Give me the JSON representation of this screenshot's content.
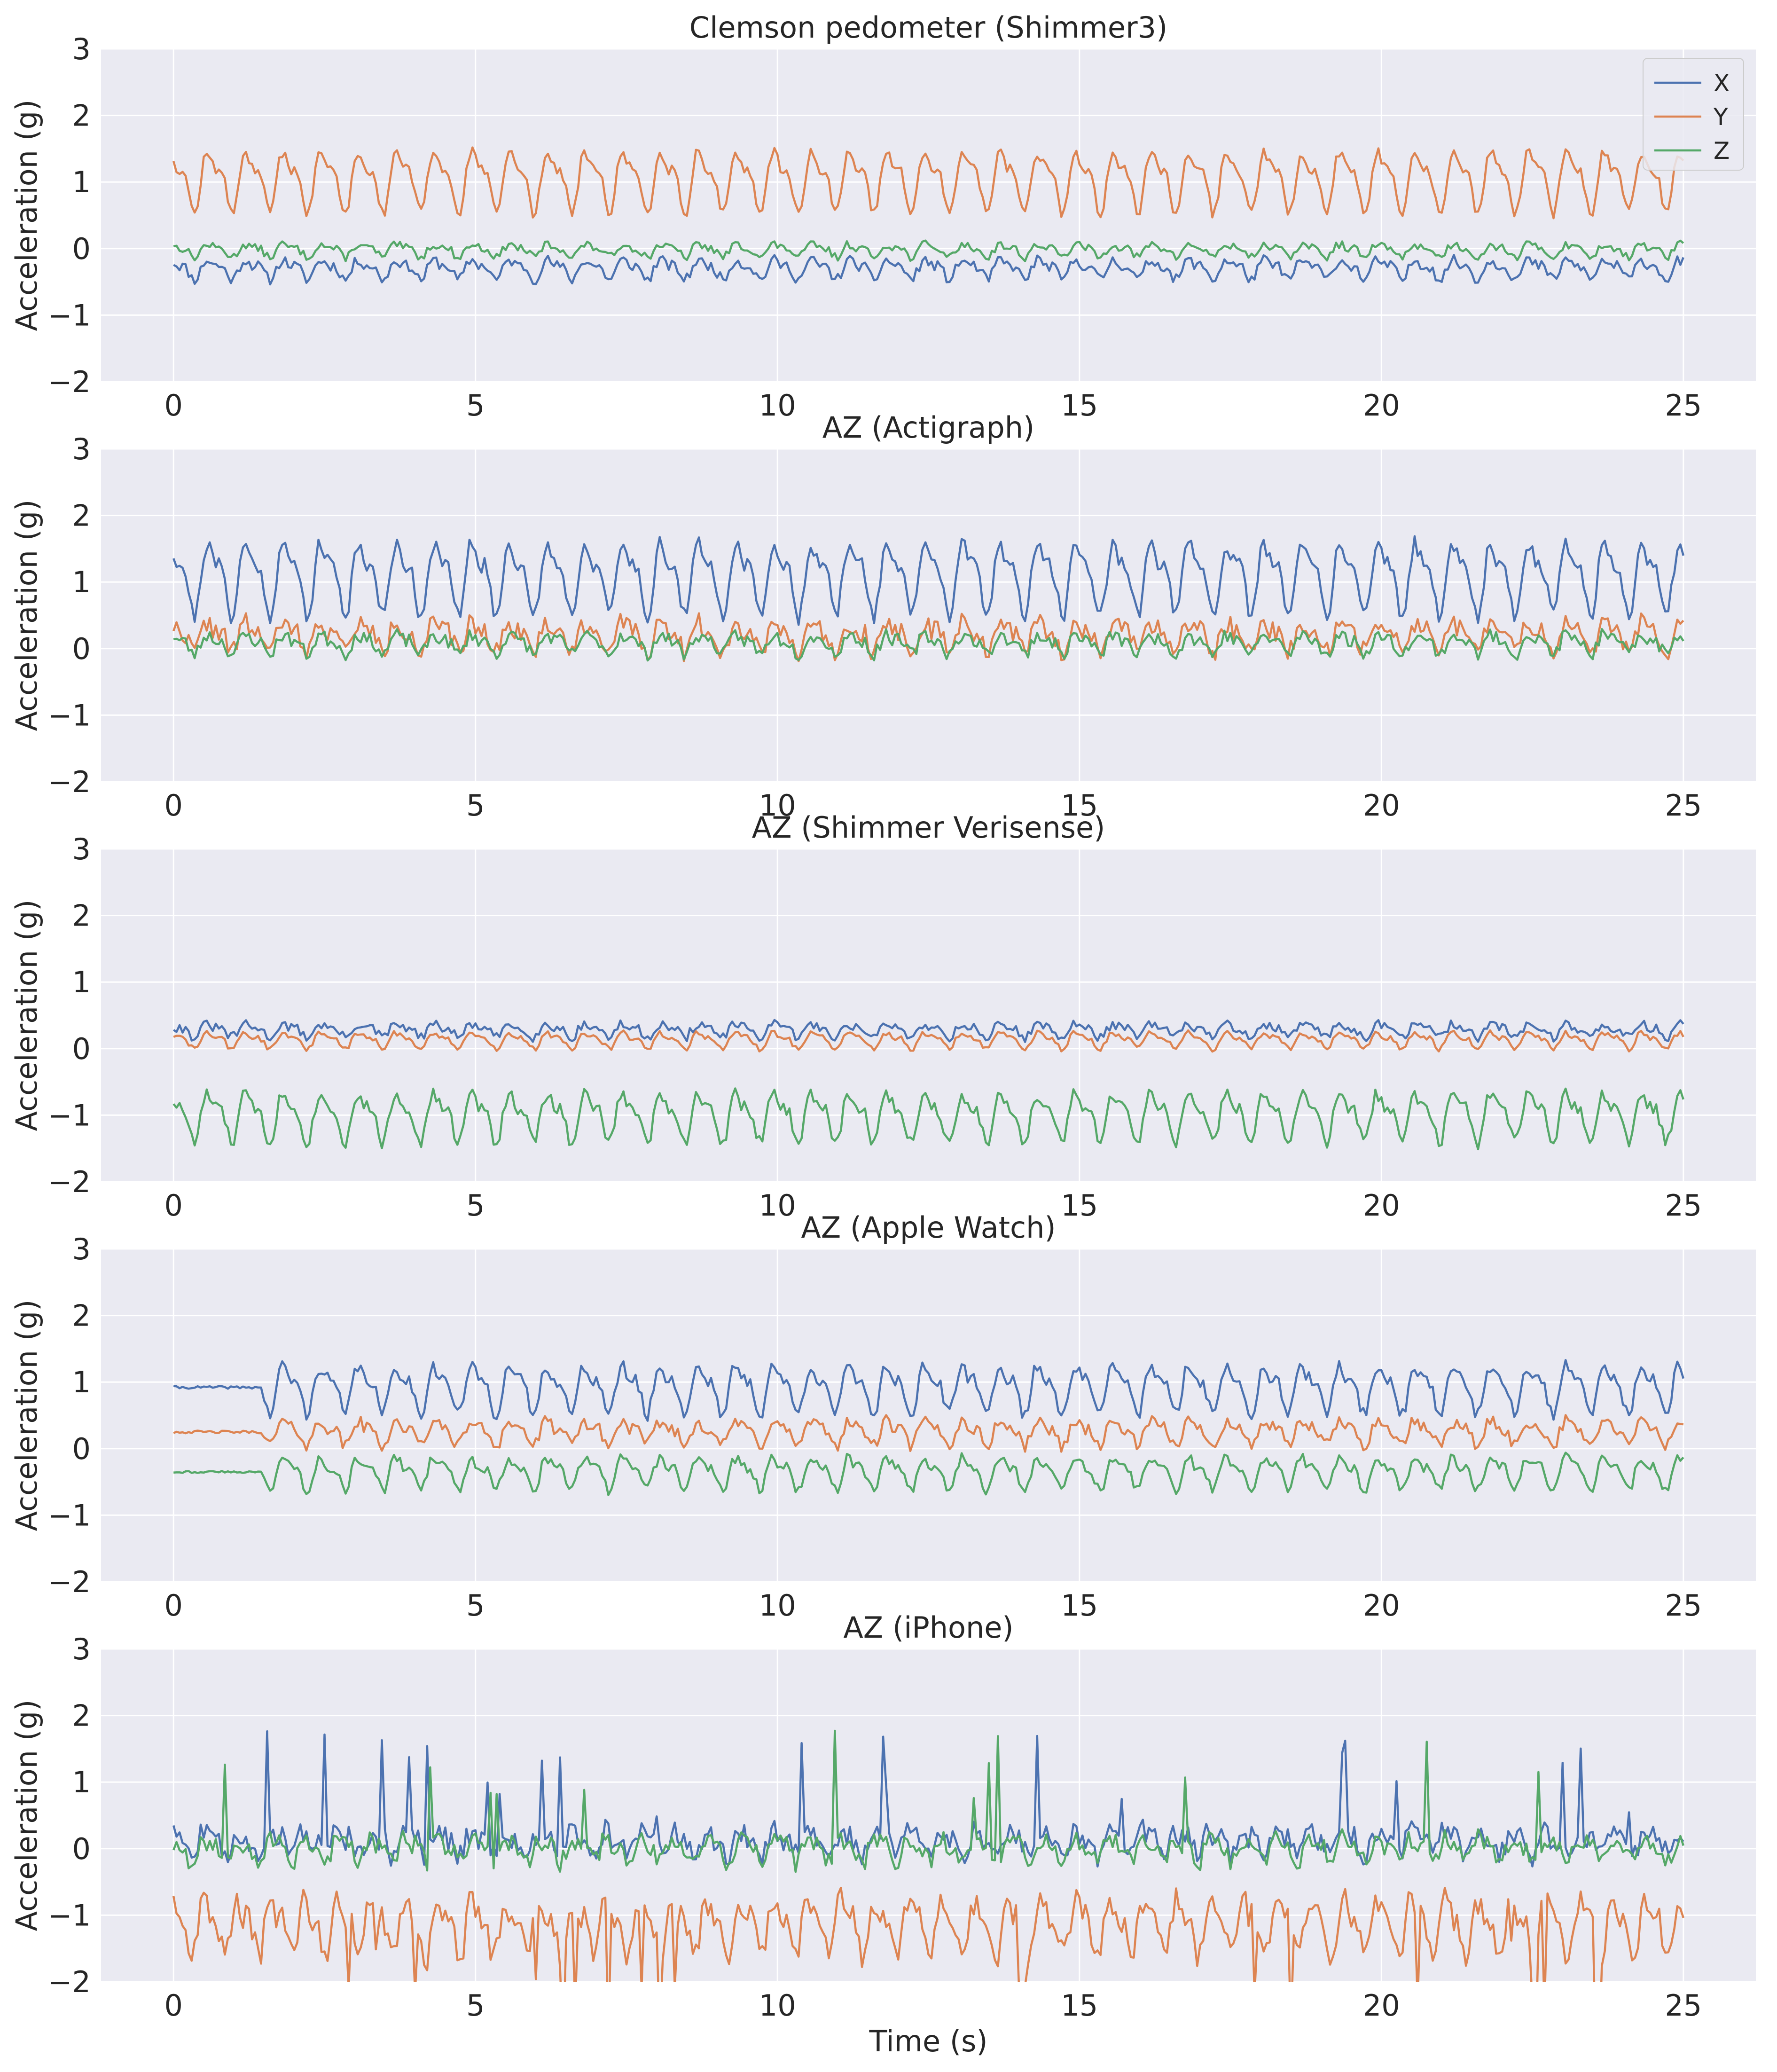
{
  "figure": {
    "xlabel": "Time (s)",
    "ylabel": "Acceleration (g)"
  },
  "legend": {
    "position": "top-right",
    "entries": [
      {
        "label": "X",
        "color": "#4c72b0"
      },
      {
        "label": "Y",
        "color": "#dd8452"
      },
      {
        "label": "Z",
        "color": "#55a868"
      }
    ]
  },
  "chart_data": [
    {
      "type": "line",
      "title": "Clemson pedometer (Shimmer3)",
      "xlabel": "",
      "ylabel": "Acceleration (g)",
      "xlim": [
        -1.2,
        26.2
      ],
      "ylim": [
        -2,
        3
      ],
      "xticks": [
        0,
        5,
        10,
        15,
        20,
        25
      ],
      "yticks": [
        -2,
        -1,
        0,
        1,
        2,
        3
      ],
      "ytick_labels": [
        "−2",
        "−1",
        "0",
        "1",
        "2",
        "3"
      ],
      "grid": true,
      "duration": 25,
      "series": [
        {
          "name": "X",
          "color": "#4c72b0",
          "mean": -0.3,
          "amp": 0.12,
          "freq": 1.6,
          "noise": 0.08,
          "seed": 11
        },
        {
          "name": "Y",
          "color": "#dd8452",
          "mean": 1.05,
          "amp": 0.38,
          "freq": 1.6,
          "noise": 0.08,
          "seed": 12
        },
        {
          "name": "Z",
          "color": "#55a868",
          "mean": -0.02,
          "amp": 0.08,
          "freq": 1.6,
          "noise": 0.06,
          "seed": 13
        }
      ]
    },
    {
      "type": "line",
      "title": "AZ (Actigraph)",
      "xlabel": "",
      "ylabel": "Acceleration (g)",
      "xlim": [
        -1.2,
        26.2
      ],
      "ylim": [
        -2,
        3
      ],
      "xticks": [
        0,
        5,
        10,
        15,
        20,
        25
      ],
      "yticks": [
        -2,
        -1,
        0,
        1,
        2,
        3
      ],
      "ytick_labels": [
        "−2",
        "−1",
        "0",
        "1",
        "2",
        "3"
      ],
      "grid": true,
      "duration": 25,
      "series": [
        {
          "name": "X",
          "color": "#4c72b0",
          "mean": 1.1,
          "amp": 0.45,
          "freq": 1.6,
          "noise": 0.12,
          "seed": 21
        },
        {
          "name": "Y",
          "color": "#dd8452",
          "mean": 0.2,
          "amp": 0.18,
          "freq": 1.6,
          "noise": 0.15,
          "seed": 22
        },
        {
          "name": "Z",
          "color": "#55a868",
          "mean": 0.08,
          "amp": 0.12,
          "freq": 1.6,
          "noise": 0.1,
          "seed": 23
        }
      ]
    },
    {
      "type": "line",
      "title": "AZ (Shimmer Verisense)",
      "xlabel": "",
      "ylabel": "Acceleration (g)",
      "xlim": [
        -1.2,
        26.2
      ],
      "ylim": [
        -2,
        3
      ],
      "xticks": [
        0,
        5,
        10,
        15,
        20,
        25
      ],
      "yticks": [
        -2,
        -1,
        0,
        1,
        2,
        3
      ],
      "ytick_labels": [
        "−2",
        "−1",
        "0",
        "1",
        "2",
        "3"
      ],
      "grid": true,
      "duration": 25,
      "series": [
        {
          "name": "X",
          "color": "#4c72b0",
          "mean": 0.28,
          "amp": 0.08,
          "freq": 1.6,
          "noise": 0.07,
          "seed": 31
        },
        {
          "name": "Y",
          "color": "#dd8452",
          "mean": 0.13,
          "amp": 0.1,
          "freq": 1.6,
          "noise": 0.04,
          "seed": 32
        },
        {
          "name": "Z",
          "color": "#55a868",
          "mean": -1.0,
          "amp": 0.3,
          "freq": 1.6,
          "noise": 0.1,
          "seed": 33
        }
      ]
    },
    {
      "type": "line",
      "title": "AZ (Apple Watch)",
      "xlabel": "",
      "ylabel": "Acceleration (g)",
      "xlim": [
        -1.2,
        26.2
      ],
      "ylim": [
        -2,
        3
      ],
      "xticks": [
        0,
        5,
        10,
        15,
        20,
        25
      ],
      "yticks": [
        -2,
        -1,
        0,
        1,
        2,
        3
      ],
      "ytick_labels": [
        "−2",
        "−1",
        "0",
        "1",
        "2",
        "3"
      ],
      "grid": true,
      "duration": 25,
      "quiet_until": 1.5,
      "series": [
        {
          "name": "X",
          "color": "#4c72b0",
          "mean": 0.92,
          "amp": 0.3,
          "freq": 1.6,
          "noise": 0.1,
          "seed": 41
        },
        {
          "name": "Y",
          "color": "#dd8452",
          "mean": 0.25,
          "amp": 0.15,
          "freq": 1.6,
          "noise": 0.1,
          "seed": 42
        },
        {
          "name": "Z",
          "color": "#55a868",
          "mean": -0.35,
          "amp": 0.2,
          "freq": 1.6,
          "noise": 0.08,
          "seed": 43
        }
      ]
    },
    {
      "type": "line",
      "title": "AZ (iPhone)",
      "xlabel": "Time (s)",
      "ylabel": "Acceleration (g)",
      "xlim": [
        -1.2,
        26.2
      ],
      "ylim": [
        -2,
        3
      ],
      "xticks": [
        0,
        5,
        10,
        15,
        20,
        25
      ],
      "yticks": [
        -2,
        -1,
        0,
        1,
        2,
        3
      ],
      "ytick_labels": [
        "−2",
        "−1",
        "0",
        "1",
        "2",
        "3"
      ],
      "grid": true,
      "duration": 25,
      "spiky": true,
      "series": [
        {
          "name": "X",
          "color": "#4c72b0",
          "mean": 0.1,
          "amp": 0.15,
          "freq": 1.8,
          "noise": 0.18,
          "seed": 51
        },
        {
          "name": "Y",
          "color": "#dd8452",
          "mean": -1.15,
          "amp": 0.35,
          "freq": 1.8,
          "noise": 0.2,
          "seed": 52
        },
        {
          "name": "Z",
          "color": "#55a868",
          "mean": 0.0,
          "amp": 0.15,
          "freq": 1.8,
          "noise": 0.15,
          "seed": 53
        }
      ]
    }
  ]
}
